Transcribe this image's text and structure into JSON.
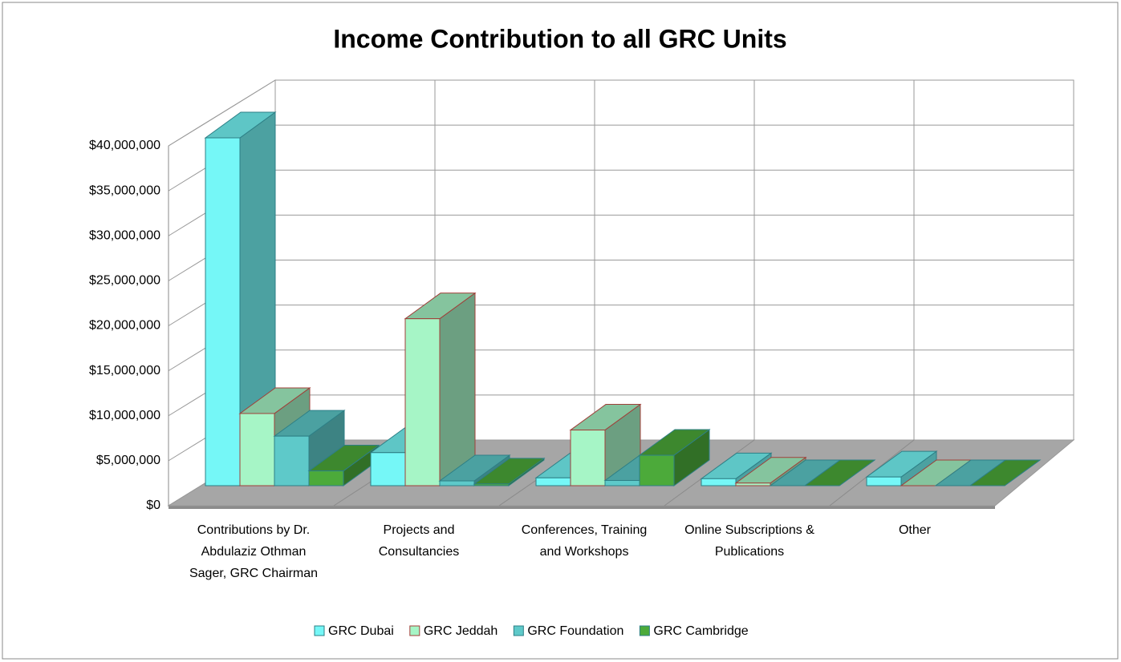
{
  "chart_data": {
    "type": "bar3d",
    "title": "Income Contribution to all GRC Units",
    "categories": [
      "Contributions by Dr. Abdulaziz Othman Sager, GRC Chairman",
      "Projects and Consultancies",
      "Conferences, Training and Workshops",
      "Online Subscriptions & Publications",
      "Other"
    ],
    "series": [
      {
        "name": "GRC Dubai",
        "color": "#75f7f7",
        "values": [
          40000000,
          3800000,
          900000,
          800000,
          1000000
        ]
      },
      {
        "name": "GRC Jeddah",
        "color": "#a6f5c6",
        "values": [
          8300000,
          19200000,
          6400000,
          300000,
          0
        ]
      },
      {
        "name": "GRC Foundation",
        "color": "#5ec9c9",
        "values": [
          5700000,
          550000,
          600000,
          0,
          0
        ]
      },
      {
        "name": "GRC Cambridge",
        "color": "#4caa3a",
        "values": [
          1700000,
          200000,
          3500000,
          0,
          0
        ]
      }
    ],
    "ylim": [
      0,
      40000000
    ],
    "yticks": [
      {
        "value": 0,
        "label": "$0"
      },
      {
        "value": 5000000,
        "label": "$5,000,000"
      },
      {
        "value": 10000000,
        "label": "$10,000,000"
      },
      {
        "value": 15000000,
        "label": "$15,000,000"
      },
      {
        "value": 20000000,
        "label": "$20,000,000"
      },
      {
        "value": 25000000,
        "label": "$25,000,000"
      },
      {
        "value": 30000000,
        "label": "$30,000,000"
      },
      {
        "value": 35000000,
        "label": "$35,000,000"
      },
      {
        "value": 40000000,
        "label": "$40,000,000"
      }
    ],
    "grid": true,
    "legend": "bottom"
  }
}
